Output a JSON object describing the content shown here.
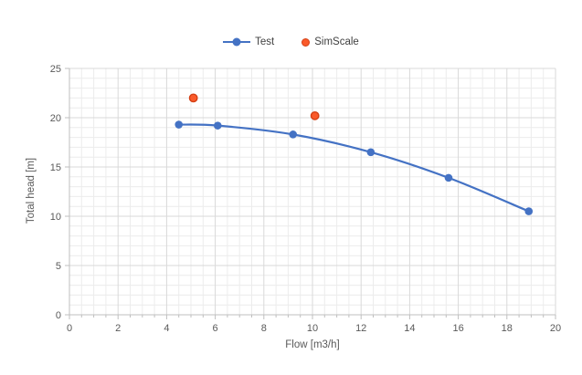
{
  "colors": {
    "test_blue": "#4472C4",
    "simscale_orange": "#FA5A2A",
    "simscale_border": "#D43F14",
    "grid_minor": "#ECECEC",
    "grid_major": "#D9D9D9",
    "axis_line": "#BFBFBF",
    "tick_text": "#595959"
  },
  "legend": {
    "items": [
      {
        "label": "Test",
        "marker": "blue-line-with-dot"
      },
      {
        "label": "SimScale",
        "marker": "orange-dot"
      }
    ]
  },
  "chart_data": {
    "type": "line",
    "title": "",
    "xlabel": "Flow [m3/h]",
    "ylabel": "Total head [m]",
    "xlim": [
      0,
      20
    ],
    "ylim": [
      0,
      25
    ],
    "x_ticks": [
      0,
      2,
      4,
      6,
      8,
      10,
      12,
      14,
      16,
      18,
      20
    ],
    "y_ticks": [
      0,
      5,
      10,
      15,
      20,
      25
    ],
    "x_minor_step": 0.5,
    "y_minor_step": 1,
    "grid": "major+minor",
    "legend_position": "top-center",
    "series": [
      {
        "name": "Test",
        "type": "line+marker",
        "marker": "circle",
        "color": "#4472C4",
        "points": [
          [
            4.5,
            19.3
          ],
          [
            6.1,
            19.2
          ],
          [
            9.2,
            18.3
          ],
          [
            12.4,
            16.5
          ],
          [
            15.6,
            13.9
          ],
          [
            18.9,
            10.5
          ]
        ]
      },
      {
        "name": "SimScale",
        "type": "scatter",
        "marker": "circle",
        "color": "#FA5A2A",
        "marker_stroke": "#D43F14",
        "points": [
          [
            5.1,
            22.0
          ],
          [
            10.1,
            20.2
          ]
        ]
      }
    ]
  }
}
